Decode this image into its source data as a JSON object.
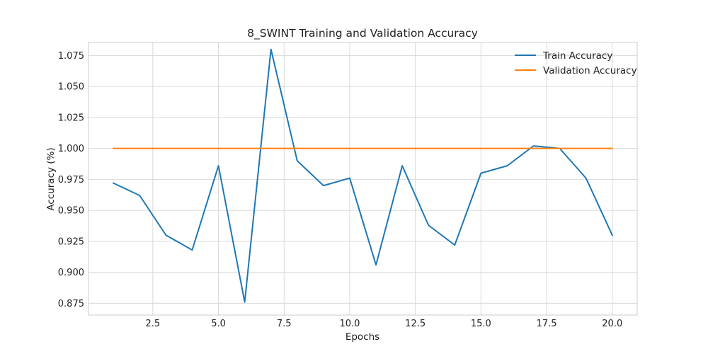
{
  "chart_data": {
    "type": "line",
    "title": "8_SWINT Training and Validation Accuracy",
    "xlabel": "Epochs",
    "ylabel": "Accuracy (%)",
    "xlim": [
      0.05,
      20.95
    ],
    "ylim": [
      0.8655,
      1.0855
    ],
    "xticks": [
      2.5,
      5.0,
      7.5,
      10.0,
      12.5,
      15.0,
      17.5,
      20.0
    ],
    "xtick_labels": [
      "2.5",
      "5.0",
      "7.5",
      "10.0",
      "12.5",
      "15.0",
      "17.5",
      "20.0"
    ],
    "yticks": [
      0.875,
      0.9,
      0.925,
      0.95,
      0.975,
      1.0,
      1.025,
      1.05,
      1.075
    ],
    "ytick_labels": [
      "0.875",
      "0.900",
      "0.925",
      "0.950",
      "0.975",
      "1.000",
      "1.025",
      "1.050",
      "1.075"
    ],
    "grid": true,
    "legend_position": "top-right",
    "x": [
      1,
      2,
      3,
      4,
      5,
      6,
      7,
      8,
      9,
      10,
      11,
      12,
      13,
      14,
      15,
      16,
      17,
      18,
      19,
      20
    ],
    "series": [
      {
        "name": "Train Accuracy",
        "color": "#1f77b4",
        "values": [
          0.972,
          0.962,
          0.93,
          0.918,
          0.986,
          0.876,
          1.08,
          0.99,
          0.97,
          0.976,
          0.906,
          0.986,
          0.938,
          0.922,
          0.98,
          0.986,
          1.002,
          1.0,
          0.976,
          0.93
        ]
      },
      {
        "name": "Validation Accuracy",
        "color": "#ff7f0e",
        "values": [
          1.0,
          1.0,
          1.0,
          1.0,
          1.0,
          1.0,
          1.0,
          1.0,
          1.0,
          1.0,
          1.0,
          1.0,
          1.0,
          1.0,
          1.0,
          1.0,
          1.0,
          1.0,
          1.0,
          1.0
        ]
      }
    ]
  }
}
